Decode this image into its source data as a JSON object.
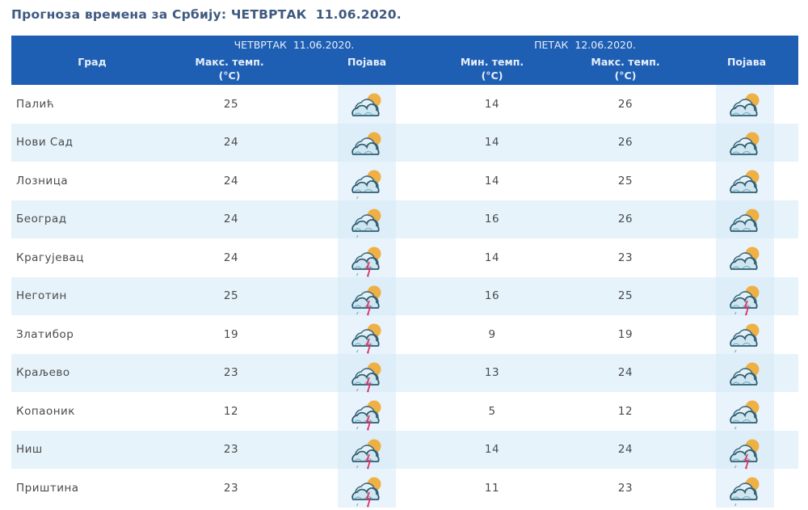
{
  "title": "Прогноза времена за Србију: ЧЕТВРТАК  11.06.2020.",
  "colors": {
    "header_bg": "#1e5fb4",
    "title": "#3f5a80",
    "row_alt": "#e6f3fb"
  },
  "header": {
    "city_label": "Град",
    "day1": {
      "label": "ЧЕТВРТАК  11.06.2020.",
      "max_label": "Макс. темп.",
      "unit": "(°C)",
      "weather_label": "Појава"
    },
    "day2": {
      "label": "ПЕТАК  12.06.2020.",
      "min_label": "Мин. темп.",
      "max_label": "Макс. темп.",
      "unit": "(°C)",
      "weather_label": "Појава"
    }
  },
  "rows": [
    {
      "city": "Палић",
      "d1_max": "25",
      "d1_icon": "partly-cloudy-icon",
      "d2_min": "14",
      "d2_max": "26",
      "d2_icon": "partly-cloudy-icon"
    },
    {
      "city": "Нови Сад",
      "d1_max": "24",
      "d1_icon": "partly-cloudy-icon",
      "d2_min": "14",
      "d2_max": "26",
      "d2_icon": "partly-cloudy-icon"
    },
    {
      "city": "Лозница",
      "d1_max": "24",
      "d1_icon": "showers-icon",
      "d2_min": "14",
      "d2_max": "25",
      "d2_icon": "partly-cloudy-icon"
    },
    {
      "city": "Београд",
      "d1_max": "24",
      "d1_icon": "showers-icon",
      "d2_min": "16",
      "d2_max": "26",
      "d2_icon": "partly-cloudy-icon"
    },
    {
      "city": "Крагујевац",
      "d1_max": "24",
      "d1_icon": "thunderstorm-icon",
      "d2_min": "14",
      "d2_max": "23",
      "d2_icon": "partly-cloudy-icon"
    },
    {
      "city": "Неготин",
      "d1_max": "25",
      "d1_icon": "thunderstorm-icon",
      "d2_min": "16",
      "d2_max": "25",
      "d2_icon": "thunderstorm-icon"
    },
    {
      "city": "Златибор",
      "d1_max": "19",
      "d1_icon": "thunderstorm-icon",
      "d2_min": "9",
      "d2_max": "19",
      "d2_icon": "showers-icon"
    },
    {
      "city": "Краљево",
      "d1_max": "23",
      "d1_icon": "thunderstorm-icon",
      "d2_min": "13",
      "d2_max": "24",
      "d2_icon": "partly-cloudy-icon"
    },
    {
      "city": "Копаоник",
      "d1_max": "12",
      "d1_icon": "thunderstorm-icon",
      "d2_min": "5",
      "d2_max": "12",
      "d2_icon": "showers-icon"
    },
    {
      "city": "Ниш",
      "d1_max": "23",
      "d1_icon": "thunderstorm-icon",
      "d2_min": "14",
      "d2_max": "24",
      "d2_icon": "thunderstorm-icon"
    },
    {
      "city": "Приштина",
      "d1_max": "23",
      "d1_icon": "thunderstorm-icon",
      "d2_min": "11",
      "d2_max": "23",
      "d2_icon": "showers-icon"
    }
  ]
}
